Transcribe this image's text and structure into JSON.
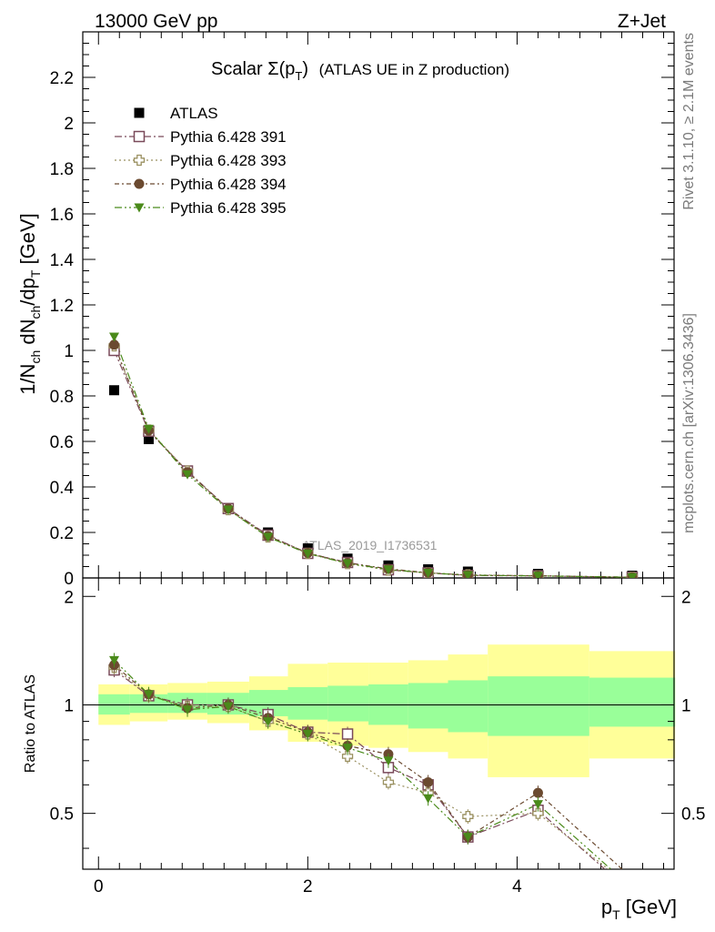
{
  "header": {
    "left": "13000 GeV pp",
    "right": "Z+Jet"
  },
  "side": {
    "rivet": "Rivet 3.1.10, ≥ 2.1M events",
    "mcplots": "mcplots.cern.ch [arXiv:1306.3436]"
  },
  "chart_data": {
    "type": "scatter",
    "title_main": "Scalar Σ(p",
    "title_sub": "T",
    "title_close": ")",
    "title_rest": "(ATLAS UE in Z production)",
    "watermark": "ATLAS_2019_I1736531",
    "ylabel": "1/N_ch dN_ch/dp_T [GeV]",
    "xlabel": "p_T [GeV]",
    "ratio_ylabel": "Ratio to ATLAS",
    "xlim": [
      -0.15,
      5.5
    ],
    "ylim": [
      0,
      2.4
    ],
    "ratio_ylim": [
      0.35,
      2.25
    ],
    "x_ticks": [
      0,
      2,
      4
    ],
    "y_ticks": [
      "0",
      "0.2",
      "0.4",
      "0.6",
      "0.8",
      "1",
      "1.2",
      "1.4",
      "1.6",
      "1.8",
      "2",
      "2.2"
    ],
    "ratio_ticks": [
      "0.5",
      "1",
      "2"
    ],
    "x": [
      0.15,
      0.48,
      0.85,
      1.24,
      1.62,
      2.0,
      2.38,
      2.77,
      3.15,
      3.53,
      4.2,
      5.1
    ],
    "bin_edges": [
      0.0,
      0.3,
      0.66,
      1.04,
      1.44,
      1.81,
      2.19,
      2.58,
      2.96,
      3.34,
      3.72,
      4.69,
      5.51
    ],
    "band_green": [
      [
        0.94,
        1.07
      ],
      [
        0.95,
        1.07
      ],
      [
        0.95,
        1.08
      ],
      [
        0.94,
        1.08
      ],
      [
        0.93,
        1.1
      ],
      [
        0.91,
        1.12
      ],
      [
        0.9,
        1.13
      ],
      [
        0.88,
        1.14
      ],
      [
        0.86,
        1.15
      ],
      [
        0.84,
        1.17
      ],
      [
        0.82,
        1.2
      ],
      [
        0.87,
        1.19
      ]
    ],
    "band_yellow": [
      [
        0.88,
        1.14
      ],
      [
        0.9,
        1.14
      ],
      [
        0.91,
        1.15
      ],
      [
        0.89,
        1.16
      ],
      [
        0.85,
        1.2
      ],
      [
        0.79,
        1.3
      ],
      [
        0.77,
        1.31
      ],
      [
        0.76,
        1.31
      ],
      [
        0.74,
        1.33
      ],
      [
        0.71,
        1.38
      ],
      [
        0.63,
        1.47
      ],
      [
        0.71,
        1.41
      ]
    ],
    "series": [
      {
        "name": "ATLAS",
        "color": "#000000",
        "marker": "filled-square",
        "values": [
          0.825,
          0.61,
          0.47,
          0.305,
          0.2,
          0.13,
          0.085,
          0.055,
          0.038,
          0.028,
          0.018,
          0.01
        ]
      },
      {
        "name": "Pythia 6.428 391",
        "color": "#7a4a5a",
        "marker": "open-square",
        "values": [
          1.0,
          0.645,
          0.47,
          0.305,
          0.188,
          0.108,
          0.068,
          0.036,
          0.022,
          0.011,
          0.009,
          0.003
        ],
        "ratio": [
          1.25,
          1.06,
          1.0,
          1.0,
          0.94,
          0.84,
          0.83,
          0.67,
          0.6,
          0.43,
          0.51,
          0.3
        ]
      },
      {
        "name": "Pythia 6.428 393",
        "color": "#9a9060",
        "marker": "open-cross",
        "values": [
          1.02,
          0.65,
          0.47,
          0.3,
          0.18,
          0.108,
          0.063,
          0.034,
          0.022,
          0.014,
          0.009,
          0.003
        ],
        "ratio": [
          1.27,
          1.06,
          0.99,
          0.99,
          0.9,
          0.83,
          0.72,
          0.61,
          0.57,
          0.49,
          0.5,
          0.31
        ]
      },
      {
        "name": "Pythia 6.428 394",
        "color": "#6b4a30",
        "marker": "filled-circle",
        "values": [
          1.025,
          0.648,
          0.465,
          0.305,
          0.184,
          0.11,
          0.066,
          0.04,
          0.023,
          0.012,
          0.01,
          0.003
        ],
        "ratio": [
          1.29,
          1.07,
          0.98,
          1.0,
          0.92,
          0.84,
          0.77,
          0.73,
          0.61,
          0.43,
          0.57,
          0.33
        ]
      },
      {
        "name": "Pythia 6.428 395",
        "color": "#4a8a1a",
        "marker": "filled-triangle-down",
        "values": [
          1.06,
          0.655,
          0.455,
          0.3,
          0.18,
          0.107,
          0.064,
          0.037,
          0.022,
          0.012,
          0.009,
          0.003
        ],
        "ratio": [
          1.33,
          1.07,
          0.97,
          0.99,
          0.9,
          0.83,
          0.76,
          0.7,
          0.55,
          0.43,
          0.53,
          0.31
        ]
      }
    ]
  }
}
